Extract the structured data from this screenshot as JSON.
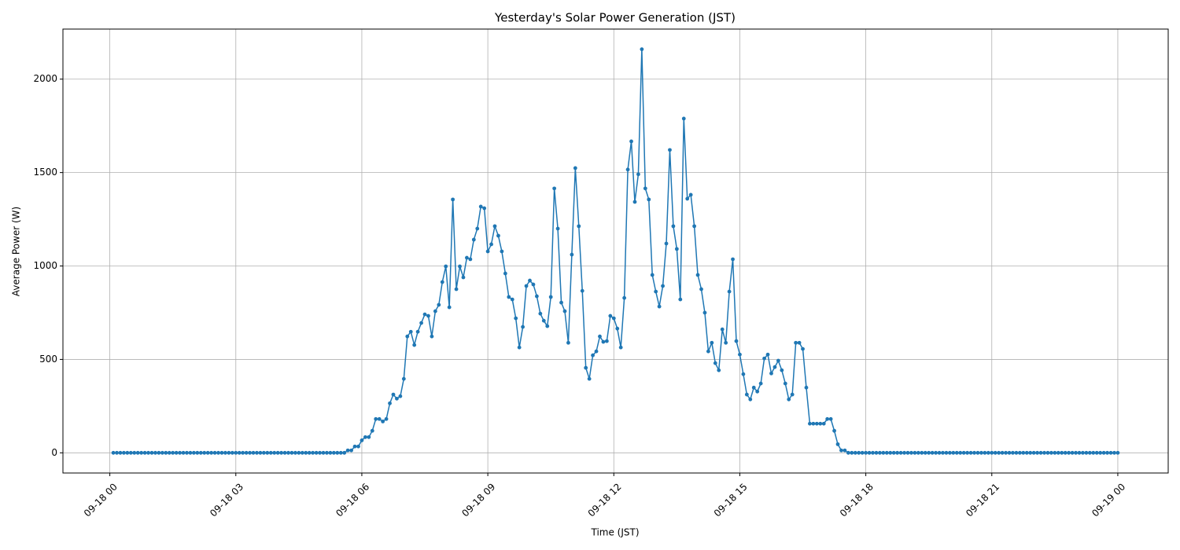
{
  "chart_data": {
    "type": "line",
    "title": "Yesterday's Solar Power Generation (JST)",
    "xlabel": "Time (JST)",
    "ylabel": "Average Power (W)",
    "grid": true,
    "marker": "o",
    "x": [
      "09-18 00:05",
      "09-18 00:10",
      "09-18 00:15",
      "09-18 00:20",
      "09-18 00:25",
      "09-18 00:30",
      "09-18 00:35",
      "09-18 00:40",
      "09-18 00:45",
      "09-18 00:50",
      "09-18 00:55",
      "09-18 01:00",
      "09-18 01:05",
      "09-18 01:10",
      "09-18 01:15",
      "09-18 01:20",
      "09-18 01:25",
      "09-18 01:30",
      "09-18 01:35",
      "09-18 01:40",
      "09-18 01:45",
      "09-18 01:50",
      "09-18 01:55",
      "09-18 02:00",
      "09-18 02:05",
      "09-18 02:10",
      "09-18 02:15",
      "09-18 02:20",
      "09-18 02:25",
      "09-18 02:30",
      "09-18 02:35",
      "09-18 02:40",
      "09-18 02:45",
      "09-18 02:50",
      "09-18 02:55",
      "09-18 03:00",
      "09-18 03:05",
      "09-18 03:10",
      "09-18 03:15",
      "09-18 03:20",
      "09-18 03:25",
      "09-18 03:30",
      "09-18 03:35",
      "09-18 03:40",
      "09-18 03:45",
      "09-18 03:50",
      "09-18 03:55",
      "09-18 04:00",
      "09-18 04:05",
      "09-18 04:10",
      "09-18 04:15",
      "09-18 04:20",
      "09-18 04:25",
      "09-18 04:30",
      "09-18 04:35",
      "09-18 04:40",
      "09-18 04:45",
      "09-18 04:50",
      "09-18 04:55",
      "09-18 05:00",
      "09-18 05:05",
      "09-18 05:10",
      "09-18 05:15",
      "09-18 05:20",
      "09-18 05:25",
      "09-18 05:30",
      "09-18 05:35",
      "09-18 05:40",
      "09-18 05:45",
      "09-18 05:50",
      "09-18 05:55",
      "09-18 06:00",
      "09-18 06:05",
      "09-18 06:10",
      "09-18 06:15",
      "09-18 06:20",
      "09-18 06:25",
      "09-18 06:30",
      "09-18 06:35",
      "09-18 06:40",
      "09-18 06:45",
      "09-18 06:50",
      "09-18 06:55",
      "09-18 07:00",
      "09-18 07:05",
      "09-18 07:10",
      "09-18 07:15",
      "09-18 07:20",
      "09-18 07:25",
      "09-18 07:30",
      "09-18 07:35",
      "09-18 07:40",
      "09-18 07:45",
      "09-18 07:50",
      "09-18 07:55",
      "09-18 08:00",
      "09-18 08:05",
      "09-18 08:10",
      "09-18 08:15",
      "09-18 08:20",
      "09-18 08:25",
      "09-18 08:30",
      "09-18 08:35",
      "09-18 08:40",
      "09-18 08:45",
      "09-18 08:50",
      "09-18 08:55",
      "09-18 09:00",
      "09-18 09:05",
      "09-18 09:10",
      "09-18 09:15",
      "09-18 09:20",
      "09-18 09:25",
      "09-18 09:30",
      "09-18 09:35",
      "09-18 09:40",
      "09-18 09:45",
      "09-18 09:50",
      "09-18 09:55",
      "09-18 10:00",
      "09-18 10:05",
      "09-18 10:10",
      "09-18 10:15",
      "09-18 10:20",
      "09-18 10:25",
      "09-18 10:30",
      "09-18 10:35",
      "09-18 10:40",
      "09-18 10:45",
      "09-18 10:50",
      "09-18 10:55",
      "09-18 11:00",
      "09-18 11:05",
      "09-18 11:10",
      "09-18 11:15",
      "09-18 11:20",
      "09-18 11:25",
      "09-18 11:30",
      "09-18 11:35",
      "09-18 11:40",
      "09-18 11:45",
      "09-18 11:50",
      "09-18 11:55",
      "09-18 12:00",
      "09-18 12:05",
      "09-18 12:10",
      "09-18 12:15",
      "09-18 12:20",
      "09-18 12:25",
      "09-18 12:30",
      "09-18 12:35",
      "09-18 12:40",
      "09-18 12:45",
      "09-18 12:50",
      "09-18 12:55",
      "09-18 13:00",
      "09-18 13:05",
      "09-18 13:10",
      "09-18 13:15",
      "09-18 13:20",
      "09-18 13:25",
      "09-18 13:30",
      "09-18 13:35",
      "09-18 13:40",
      "09-18 13:45",
      "09-18 13:50",
      "09-18 13:55",
      "09-18 14:00",
      "09-18 14:05",
      "09-18 14:10",
      "09-18 14:15",
      "09-18 14:20",
      "09-18 14:25",
      "09-18 14:30",
      "09-18 14:35",
      "09-18 14:40",
      "09-18 14:45",
      "09-18 14:50",
      "09-18 14:55",
      "09-18 15:00",
      "09-18 15:05",
      "09-18 15:10",
      "09-18 15:15",
      "09-18 15:20",
      "09-18 15:25",
      "09-18 15:30",
      "09-18 15:35",
      "09-18 15:40",
      "09-18 15:45",
      "09-18 15:50",
      "09-18 15:55",
      "09-18 16:00",
      "09-18 16:05",
      "09-18 16:10",
      "09-18 16:15",
      "09-18 16:20",
      "09-18 16:25",
      "09-18 16:30",
      "09-18 16:35",
      "09-18 16:40",
      "09-18 16:45",
      "09-18 16:50",
      "09-18 16:55",
      "09-18 17:00",
      "09-18 17:05",
      "09-18 17:10",
      "09-18 17:15",
      "09-18 17:20",
      "09-18 17:25",
      "09-18 17:30",
      "09-18 17:35",
      "09-18 17:40",
      "09-18 17:45",
      "09-18 17:50",
      "09-18 17:55",
      "09-18 18:00",
      "09-18 18:05",
      "09-18 18:10",
      "09-18 18:15",
      "09-18 18:20",
      "09-18 18:25",
      "09-18 18:30",
      "09-18 18:35",
      "09-18 18:40",
      "09-18 18:45",
      "09-18 18:50",
      "09-18 18:55",
      "09-18 19:00",
      "09-18 19:05",
      "09-18 19:10",
      "09-18 19:15",
      "09-18 19:20",
      "09-18 19:25",
      "09-18 19:30",
      "09-18 19:35",
      "09-18 19:40",
      "09-18 19:45",
      "09-18 19:50",
      "09-18 19:55",
      "09-18 20:00",
      "09-18 20:05",
      "09-18 20:10",
      "09-18 20:15",
      "09-18 20:20",
      "09-18 20:25",
      "09-18 20:30",
      "09-18 20:35",
      "09-18 20:40",
      "09-18 20:45",
      "09-18 20:50",
      "09-18 20:55",
      "09-18 21:00",
      "09-18 21:05",
      "09-18 21:10",
      "09-18 21:15",
      "09-18 21:20",
      "09-18 21:25",
      "09-18 21:30",
      "09-18 21:35",
      "09-18 21:40",
      "09-18 21:45",
      "09-18 21:50",
      "09-18 21:55",
      "09-18 22:00",
      "09-18 22:05",
      "09-18 22:10",
      "09-18 22:15",
      "09-18 22:20",
      "09-18 22:25",
      "09-18 22:30",
      "09-18 22:35",
      "09-18 22:40",
      "09-18 22:45",
      "09-18 22:50",
      "09-18 22:55",
      "09-18 23:00",
      "09-18 23:05",
      "09-18 23:10",
      "09-18 23:15",
      "09-18 23:20",
      "09-18 23:25",
      "09-18 23:30",
      "09-18 23:35",
      "09-18 23:40",
      "09-18 23:45",
      "09-18 23:50",
      "09-18 23:55",
      "09-19 00:00"
    ],
    "series": [
      {
        "name": "Average Power (W)",
        "color": "#1f77b4",
        "values": [
          0,
          0,
          0,
          0,
          0,
          0,
          0,
          0,
          0,
          0,
          0,
          0,
          0,
          0,
          0,
          0,
          0,
          0,
          0,
          0,
          0,
          0,
          0,
          0,
          0,
          0,
          0,
          0,
          0,
          0,
          0,
          0,
          0,
          0,
          0,
          0,
          0,
          0,
          0,
          0,
          0,
          0,
          0,
          0,
          0,
          0,
          0,
          0,
          0,
          0,
          0,
          0,
          0,
          0,
          0,
          0,
          0,
          0,
          0,
          0,
          0,
          0,
          0,
          0,
          0,
          0,
          0,
          13,
          13,
          34,
          34,
          67,
          84,
          84,
          118,
          181,
          181,
          168,
          181,
          265,
          312,
          290,
          303,
          396,
          623,
          648,
          577,
          648,
          695,
          741,
          733,
          623,
          758,
          792,
          914,
          998,
          779,
          1356,
          876,
          998,
          939,
          1044,
          1036,
          1141,
          1200,
          1318,
          1309,
          1078,
          1116,
          1213,
          1162,
          1078,
          960,
          834,
          821,
          720,
          564,
          674,
          893,
          922,
          901,
          838,
          745,
          707,
          678,
          834,
          1415,
          1200,
          804,
          758,
          589,
          1061,
          1524,
          1213,
          867,
          455,
          396,
          522,
          543,
          623,
          594,
          598,
          733,
          720,
          665,
          564,
          829,
          1516,
          1667,
          1343,
          1491,
          2160,
          1415,
          1356,
          952,
          863,
          783,
          893,
          1120,
          1621,
          1213,
          1091,
          821,
          1789,
          1360,
          1381,
          1213,
          952,
          876,
          750,
          543,
          589,
          480,
          442,
          661,
          589,
          863,
          1036,
          598,
          526,
          421,
          312,
          286,
          349,
          328,
          371,
          505,
          526,
          425,
          459,
          493,
          442,
          371,
          286,
          312,
          589,
          589,
          556,
          349,
          156,
          156,
          156,
          156,
          156,
          181,
          181,
          118,
          46,
          13,
          13,
          0,
          0,
          0,
          0,
          0,
          0,
          0,
          0,
          0,
          0,
          0,
          0,
          0,
          0,
          0,
          0,
          0,
          0,
          0,
          0,
          0,
          0,
          0,
          0,
          0,
          0,
          0,
          0,
          0,
          0,
          0,
          0,
          0,
          0,
          0,
          0,
          0,
          0,
          0,
          0,
          0,
          0,
          0,
          0,
          0,
          0,
          0,
          0,
          0,
          0,
          0,
          0,
          0,
          0,
          0,
          0,
          0,
          0,
          0,
          0,
          0,
          0,
          0,
          0,
          0,
          0,
          0,
          0,
          0,
          0,
          0,
          0,
          0,
          0,
          0,
          0,
          0,
          0
        ]
      }
    ],
    "xlim": [
      "09-17 22:53",
      "09-19 01:12"
    ],
    "xticks": [
      {
        "value": "09-18 00:00",
        "label": "09-18 00"
      },
      {
        "value": "09-18 03:00",
        "label": "09-18 03"
      },
      {
        "value": "09-18 06:00",
        "label": "09-18 06"
      },
      {
        "value": "09-18 09:00",
        "label": "09-18 09"
      },
      {
        "value": "09-18 12:00",
        "label": "09-18 12"
      },
      {
        "value": "09-18 15:00",
        "label": "09-18 15"
      },
      {
        "value": "09-18 18:00",
        "label": "09-18 18"
      },
      {
        "value": "09-18 21:00",
        "label": "09-18 21"
      },
      {
        "value": "09-19 00:00",
        "label": "09-19 00"
      }
    ],
    "ylim": [
      -108,
      2268
    ],
    "yticks": [
      0,
      500,
      1000,
      1500,
      2000
    ]
  }
}
